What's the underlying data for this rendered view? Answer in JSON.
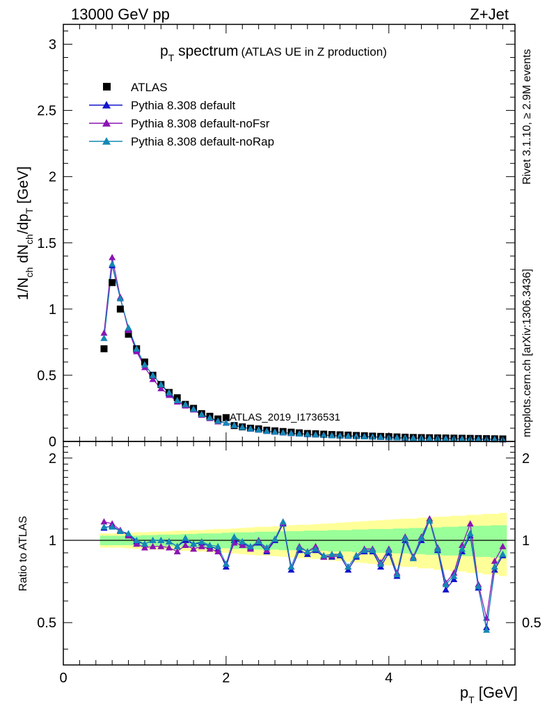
{
  "header": {
    "left": "13000 GeV pp",
    "right": "Z+Jet"
  },
  "side_labels": {
    "rivet": "Rivet 3.1.10, ≥ 2.9M events",
    "mcplots": "mcplots.cern.ch [arXiv:1306.3436]"
  },
  "title": {
    "main": "p",
    "sub": "T",
    "rest": " spectrum",
    "small": "(ATLAS UE in Z production)"
  },
  "watermark": "ATLAS_2019_I1736531",
  "axes": {
    "ylabel_top": "1/N_ch dN_ch/dp_T [GeV]",
    "ylabel_bottom": "Ratio to ATLAS",
    "xlabel_main": "p",
    "xlabel_sub": "T",
    "xlabel_unit": " [GeV]"
  },
  "colors": {
    "data": "#000000",
    "default": "#1414cc",
    "noFsr": "#8a14b4",
    "noRap": "#1488b4",
    "band_outer": "#ffff99",
    "band_inner": "#99ff99"
  },
  "chart_data": [
    {
      "type": "line",
      "panel": "main",
      "title": "p_T spectrum (ATLAS UE in Z production)",
      "xlabel": "p_T [GeV]",
      "ylabel": "1/N_ch dN_ch/dp_T [GeV]",
      "xlim": [
        0,
        5.55
      ],
      "ylim": [
        0,
        3.15
      ],
      "yticks": [
        0,
        0.5,
        1,
        1.5,
        2,
        2.5,
        3
      ],
      "ytick_labels": [
        "0",
        "0.5",
        "1",
        "1.5",
        "2",
        "2.5",
        "3"
      ],
      "x": [
        0.5,
        0.6,
        0.7,
        0.8,
        0.9,
        1.0,
        1.1,
        1.2,
        1.3,
        1.4,
        1.5,
        1.6,
        1.7,
        1.8,
        1.9,
        2.0,
        2.1,
        2.2,
        2.3,
        2.4,
        2.5,
        2.6,
        2.7,
        2.8,
        2.9,
        3.0,
        3.1,
        3.2,
        3.3,
        3.4,
        3.5,
        3.6,
        3.7,
        3.8,
        3.9,
        4.0,
        4.1,
        4.2,
        4.3,
        4.4,
        4.5,
        4.6,
        4.7,
        4.8,
        4.9,
        5.0,
        5.1,
        5.2,
        5.3,
        5.4
      ],
      "series": [
        {
          "name": "ATLAS",
          "marker": "square",
          "values": [
            0.7,
            1.2,
            1.0,
            0.81,
            0.7,
            0.6,
            0.5,
            0.43,
            0.37,
            0.33,
            0.28,
            0.25,
            0.21,
            0.19,
            0.17,
            0.18,
            0.12,
            0.11,
            0.1,
            0.095,
            0.085,
            0.08,
            0.075,
            0.07,
            0.065,
            0.06,
            0.058,
            0.055,
            0.052,
            0.05,
            0.048,
            0.045,
            0.043,
            0.04,
            0.038,
            0.036,
            0.034,
            0.032,
            0.03,
            0.029,
            0.028,
            0.027,
            0.026,
            0.025,
            0.024,
            0.023,
            0.022,
            0.021,
            0.02,
            0.019
          ]
        },
        {
          "name": "Pythia 8.308 default",
          "marker": "triangle",
          "values": [
            0.78,
            1.33,
            1.08,
            0.85,
            0.69,
            0.58,
            0.5,
            0.43,
            0.36,
            0.31,
            0.28,
            0.245,
            0.205,
            0.18,
            0.155,
            0.14,
            0.122,
            0.108,
            0.096,
            0.088,
            0.078,
            0.072,
            0.067,
            0.062,
            0.058,
            0.054,
            0.051,
            0.048,
            0.045,
            0.043,
            0.041,
            0.039,
            0.037,
            0.035,
            0.033,
            0.031,
            0.029,
            0.028,
            0.026,
            0.025,
            0.024,
            0.023,
            0.022,
            0.021,
            0.02,
            0.019,
            0.018,
            0.017,
            0.016,
            0.015
          ]
        },
        {
          "name": "Pythia 8.308 default-noFsr",
          "marker": "triangle",
          "values": [
            0.82,
            1.39,
            1.09,
            0.84,
            0.68,
            0.56,
            0.47,
            0.4,
            0.35,
            0.3,
            0.27,
            0.24,
            0.2,
            0.175,
            0.15,
            0.14,
            0.122,
            0.108,
            0.096,
            0.088,
            0.078,
            0.072,
            0.067,
            0.062,
            0.058,
            0.054,
            0.051,
            0.048,
            0.045,
            0.043,
            0.041,
            0.039,
            0.037,
            0.035,
            0.033,
            0.031,
            0.029,
            0.028,
            0.026,
            0.025,
            0.024,
            0.023,
            0.022,
            0.021,
            0.02,
            0.019,
            0.018,
            0.017,
            0.016,
            0.015
          ]
        },
        {
          "name": "Pythia 8.308 default-noRap",
          "marker": "triangle",
          "values": [
            0.78,
            1.34,
            1.08,
            0.86,
            0.7,
            0.58,
            0.5,
            0.43,
            0.37,
            0.31,
            0.28,
            0.245,
            0.205,
            0.18,
            0.155,
            0.14,
            0.122,
            0.108,
            0.096,
            0.088,
            0.078,
            0.072,
            0.067,
            0.062,
            0.058,
            0.054,
            0.051,
            0.048,
            0.045,
            0.043,
            0.041,
            0.039,
            0.037,
            0.035,
            0.033,
            0.031,
            0.029,
            0.028,
            0.026,
            0.025,
            0.024,
            0.023,
            0.022,
            0.021,
            0.02,
            0.019,
            0.018,
            0.017,
            0.016,
            0.015
          ]
        }
      ],
      "legend": "top-left"
    },
    {
      "type": "line",
      "panel": "ratio",
      "ylabel": "Ratio to ATLAS",
      "xlabel": "p_T [GeV]",
      "xlim": [
        0,
        5.55
      ],
      "ylim": [
        0.35,
        2.3
      ],
      "log_y": true,
      "yticks": [
        0.5,
        1,
        2
      ],
      "ytick_labels": [
        "0.5",
        "1",
        "2"
      ],
      "xticks": [
        0,
        2,
        4
      ],
      "xtick_labels": [
        "0",
        "2",
        "4"
      ],
      "x": [
        0.5,
        0.6,
        0.7,
        0.8,
        0.9,
        1.0,
        1.1,
        1.2,
        1.3,
        1.4,
        1.5,
        1.6,
        1.7,
        1.8,
        1.9,
        2.0,
        2.1,
        2.2,
        2.3,
        2.4,
        2.5,
        2.6,
        2.7,
        2.8,
        2.9,
        3.0,
        3.1,
        3.2,
        3.3,
        3.4,
        3.5,
        3.6,
        3.7,
        3.8,
        3.9,
        4.0,
        4.1,
        4.2,
        4.3,
        4.4,
        4.5,
        4.6,
        4.7,
        4.8,
        4.9,
        5.0,
        5.1,
        5.2,
        5.3,
        5.4
      ],
      "band_inner_halfwidth": [
        0.04,
        0.04,
        0.04,
        0.04,
        0.04,
        0.045,
        0.045,
        0.05,
        0.05,
        0.05,
        0.055,
        0.055,
        0.06,
        0.06,
        0.06,
        0.065,
        0.07,
        0.07,
        0.07,
        0.075,
        0.075,
        0.075,
        0.08,
        0.08,
        0.08,
        0.085,
        0.085,
        0.085,
        0.09,
        0.09,
        0.09,
        0.095,
        0.095,
        0.1,
        0.1,
        0.1,
        0.105,
        0.105,
        0.11,
        0.11,
        0.115,
        0.115,
        0.12,
        0.12,
        0.125,
        0.125,
        0.13,
        0.13,
        0.135,
        0.135
      ],
      "band_outer_halfwidth": [
        0.06,
        0.06,
        0.06,
        0.065,
        0.07,
        0.07,
        0.075,
        0.075,
        0.08,
        0.085,
        0.085,
        0.09,
        0.09,
        0.095,
        0.1,
        0.1,
        0.105,
        0.11,
        0.115,
        0.12,
        0.12,
        0.125,
        0.13,
        0.135,
        0.14,
        0.14,
        0.145,
        0.15,
        0.155,
        0.16,
        0.165,
        0.17,
        0.175,
        0.18,
        0.185,
        0.19,
        0.195,
        0.2,
        0.2,
        0.21,
        0.21,
        0.22,
        0.22,
        0.23,
        0.23,
        0.24,
        0.24,
        0.25,
        0.25,
        0.26
      ],
      "series": [
        {
          "name": "Pythia 8.308 default",
          "values": [
            1.11,
            1.13,
            1.08,
            1.05,
            0.99,
            0.97,
            1.0,
            1.0,
            0.99,
            0.95,
            1.0,
            0.97,
            0.98,
            0.95,
            0.93,
            0.8,
            1.0,
            0.98,
            0.94,
            0.98,
            0.91,
            1.0,
            1.15,
            0.78,
            0.92,
            0.89,
            0.92,
            0.87,
            0.87,
            0.88,
            0.78,
            0.87,
            0.91,
            0.91,
            0.8,
            0.9,
            0.74,
            1.0,
            0.86,
            1.0,
            1.18,
            0.92,
            0.66,
            0.72,
            0.91,
            1.04,
            0.67,
            0.48,
            0.78,
            0.88
          ]
        },
        {
          "name": "Pythia 8.308 default-noFsr",
          "values": [
            1.17,
            1.15,
            1.09,
            1.04,
            0.97,
            0.94,
            0.95,
            0.95,
            0.94,
            0.91,
            0.96,
            0.93,
            0.95,
            0.93,
            0.91,
            0.82,
            0.98,
            0.96,
            0.93,
            1.0,
            0.92,
            1.01,
            1.16,
            0.8,
            0.95,
            0.91,
            0.95,
            0.87,
            0.88,
            0.89,
            0.8,
            0.88,
            0.93,
            0.93,
            0.83,
            0.93,
            0.76,
            1.03,
            0.87,
            1.03,
            1.2,
            0.94,
            0.7,
            0.76,
            0.96,
            1.15,
            0.69,
            0.52,
            0.84,
            0.95
          ]
        },
        {
          "name": "Pythia 8.308 default-noRap",
          "values": [
            1.12,
            1.12,
            1.08,
            1.06,
            1.0,
            0.97,
            1.0,
            1.0,
            0.99,
            0.95,
            1.02,
            0.97,
            0.99,
            0.96,
            0.95,
            0.82,
            1.03,
            0.99,
            0.95,
            0.99,
            0.94,
            1.01,
            1.17,
            0.8,
            0.94,
            0.91,
            0.93,
            0.88,
            0.89,
            0.89,
            0.8,
            0.88,
            0.92,
            0.92,
            0.82,
            0.92,
            0.75,
            1.02,
            0.86,
            1.02,
            1.18,
            0.93,
            0.69,
            0.74,
            0.93,
            1.06,
            0.68,
            0.47,
            0.8,
            0.89
          ]
        }
      ]
    }
  ]
}
